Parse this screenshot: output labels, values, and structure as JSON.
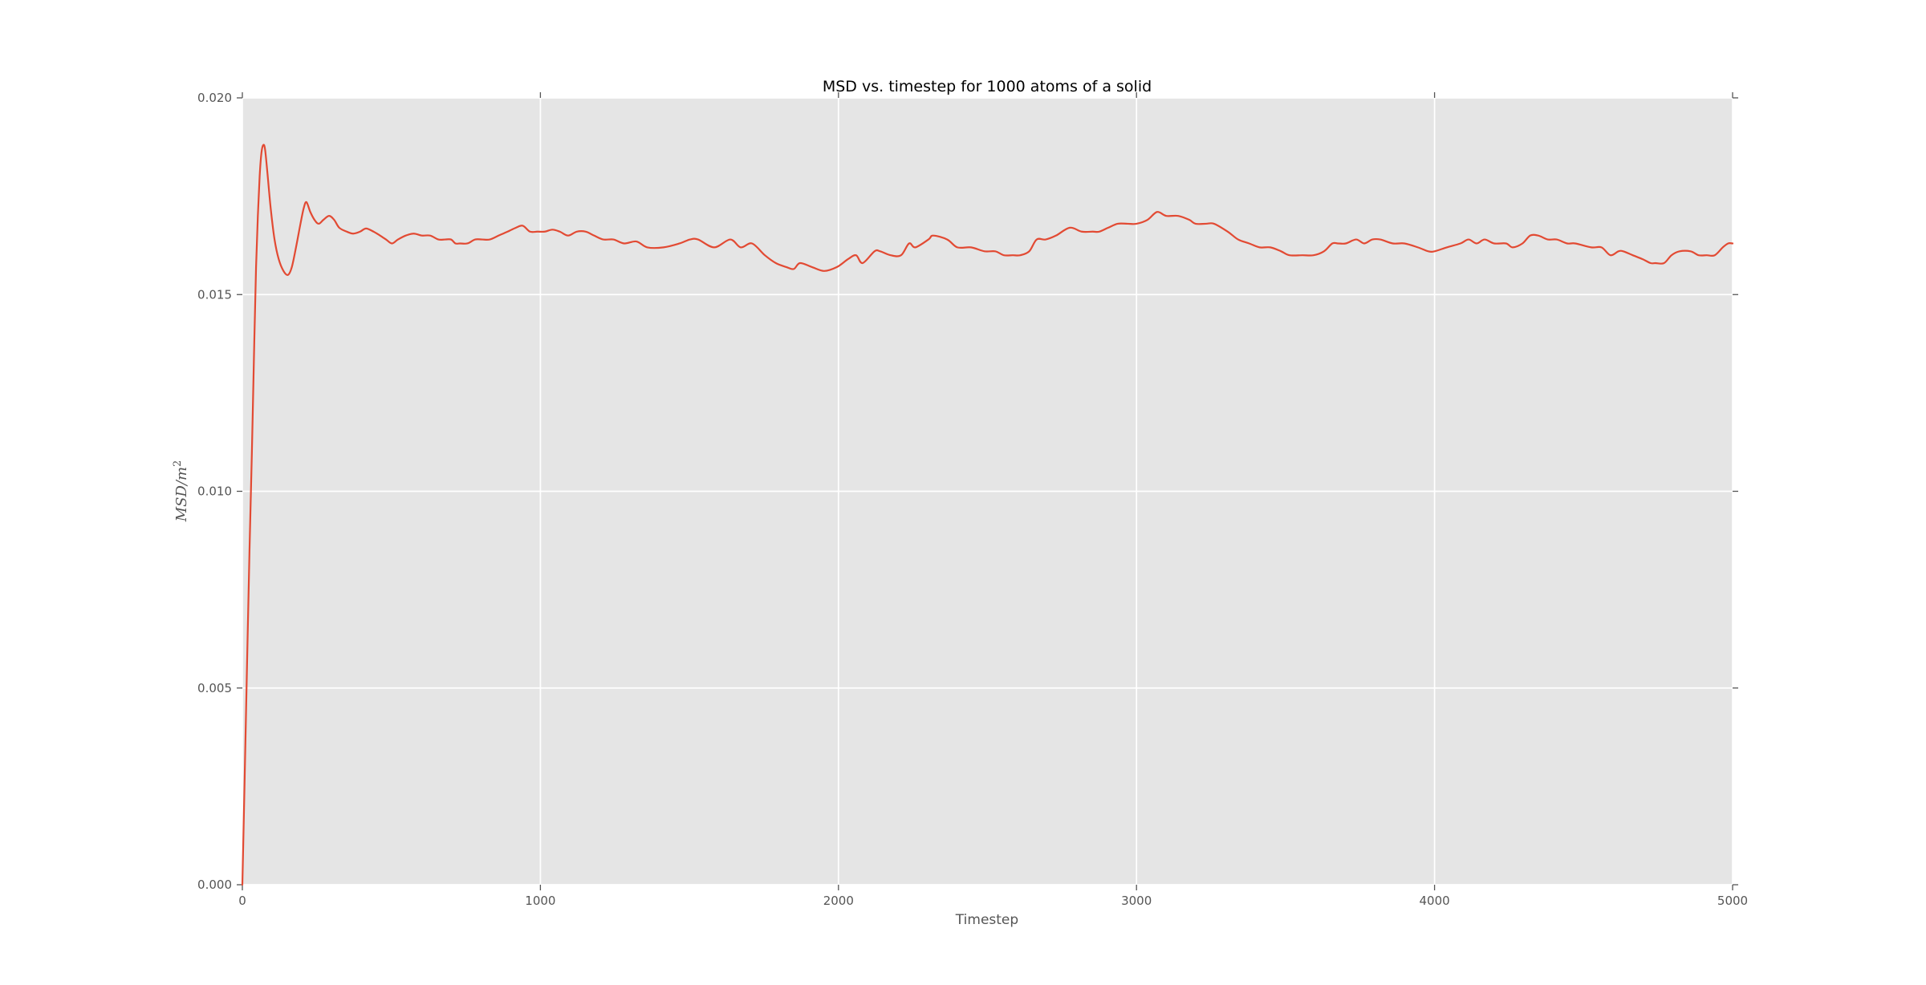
{
  "page": {
    "background": "#ffffff"
  },
  "chart_data": {
    "type": "line",
    "title": "MSD vs. timestep for 1000 atoms of a solid",
    "xlabel": "Timestep",
    "ylabel": "MSD/m²",
    "ylabel_base": "MSD/m",
    "ylabel_sup": "2",
    "xlim": [
      0,
      5000
    ],
    "ylim": [
      0.0,
      0.02
    ],
    "xticks": {
      "values": [
        0,
        1000,
        2000,
        3000,
        4000,
        5000
      ],
      "labels": [
        "0",
        "1000",
        "2000",
        "3000",
        "4000",
        "5000"
      ]
    },
    "yticks": {
      "values": [
        0.0,
        0.005,
        0.01,
        0.015,
        0.02
      ],
      "labels": [
        "0.000",
        "0.005",
        "0.010",
        "0.015",
        "0.020"
      ]
    },
    "grid": true,
    "legend": "none",
    "style": {
      "plot_bg": "#e5e5e5",
      "grid_color": "#ffffff",
      "line_color": "#e24a33",
      "tick_color": "#555555",
      "label_color": "#555555",
      "title_color": "#000000"
    },
    "series": [
      {
        "name": "MSD",
        "points": [
          [
            0,
            0
          ],
          [
            8,
            0.0028
          ],
          [
            16,
            0.0057
          ],
          [
            24,
            0.0085
          ],
          [
            32,
            0.011
          ],
          [
            40,
            0.0138
          ],
          [
            46,
            0.0157
          ],
          [
            52,
            0.017
          ],
          [
            58,
            0.018
          ],
          [
            64,
            0.0186
          ],
          [
            70,
            0.0188
          ],
          [
            76,
            0.0187
          ],
          [
            84,
            0.0181
          ],
          [
            95,
            0.0172
          ],
          [
            108,
            0.0164
          ],
          [
            122,
            0.0159
          ],
          [
            138,
            0.0156
          ],
          [
            153,
            0.0155
          ],
          [
            166,
            0.0157
          ],
          [
            180,
            0.0162
          ],
          [
            195,
            0.0168
          ],
          [
            206,
            0.0172
          ],
          [
            215,
            0.01735
          ],
          [
            228,
            0.0171
          ],
          [
            242,
            0.0169
          ],
          [
            256,
            0.0168
          ],
          [
            272,
            0.0169
          ],
          [
            291,
            0.017
          ],
          [
            308,
            0.0169
          ],
          [
            325,
            0.0167
          ],
          [
            350,
            0.0166
          ],
          [
            372,
            0.01655
          ],
          [
            395,
            0.0166
          ],
          [
            415,
            0.01668
          ],
          [
            440,
            0.0166
          ],
          [
            462,
            0.0165
          ],
          [
            482,
            0.0164
          ],
          [
            502,
            0.0163
          ],
          [
            522,
            0.0164
          ],
          [
            548,
            0.0165
          ],
          [
            575,
            0.01655
          ],
          [
            602,
            0.0165
          ],
          [
            630,
            0.0165
          ],
          [
            658,
            0.0164
          ],
          [
            680,
            0.0164
          ],
          [
            700,
            0.0164
          ],
          [
            715,
            0.0163
          ],
          [
            730,
            0.0163
          ],
          [
            755,
            0.0163
          ],
          [
            781,
            0.0164
          ],
          [
            805,
            0.0164
          ],
          [
            830,
            0.0164
          ],
          [
            860,
            0.0165
          ],
          [
            890,
            0.0166
          ],
          [
            918,
            0.0167
          ],
          [
            941,
            0.01675
          ],
          [
            965,
            0.0166
          ],
          [
            990,
            0.0166
          ],
          [
            1015,
            0.0166
          ],
          [
            1040,
            0.01665
          ],
          [
            1065,
            0.0166
          ],
          [
            1093,
            0.0165
          ],
          [
            1122,
            0.0166
          ],
          [
            1152,
            0.0166
          ],
          [
            1180,
            0.0165
          ],
          [
            1211,
            0.0164
          ],
          [
            1245,
            0.0164
          ],
          [
            1281,
            0.0163
          ],
          [
            1322,
            0.01635
          ],
          [
            1359,
            0.0162
          ],
          [
            1413,
            0.0162
          ],
          [
            1467,
            0.0163
          ],
          [
            1502,
            0.0164
          ],
          [
            1529,
            0.0164
          ],
          [
            1583,
            0.0162
          ],
          [
            1637,
            0.0164
          ],
          [
            1672,
            0.0162
          ],
          [
            1710,
            0.0163
          ],
          [
            1753,
            0.016
          ],
          [
            1790,
            0.0158
          ],
          [
            1825,
            0.0157
          ],
          [
            1850,
            0.01565
          ],
          [
            1871,
            0.0158
          ],
          [
            1911,
            0.0157
          ],
          [
            1952,
            0.0156
          ],
          [
            1995,
            0.0157
          ],
          [
            2032,
            0.0159
          ],
          [
            2059,
            0.016
          ],
          [
            2081,
            0.0158
          ],
          [
            2121,
            0.0161
          ],
          [
            2140,
            0.0161
          ],
          [
            2175,
            0.016
          ],
          [
            2210,
            0.016
          ],
          [
            2237,
            0.0163
          ],
          [
            2258,
            0.0162
          ],
          [
            2302,
            0.0164
          ],
          [
            2318,
            0.0165
          ],
          [
            2365,
            0.0164
          ],
          [
            2399,
            0.0162
          ],
          [
            2445,
            0.0162
          ],
          [
            2490,
            0.0161
          ],
          [
            2526,
            0.0161
          ],
          [
            2555,
            0.016
          ],
          [
            2585,
            0.016
          ],
          [
            2610,
            0.016
          ],
          [
            2640,
            0.0161
          ],
          [
            2665,
            0.0164
          ],
          [
            2695,
            0.0164
          ],
          [
            2730,
            0.0165
          ],
          [
            2776,
            0.0167
          ],
          [
            2816,
            0.0166
          ],
          [
            2853,
            0.0166
          ],
          [
            2875,
            0.0166
          ],
          [
            2905,
            0.0167
          ],
          [
            2937,
            0.0168
          ],
          [
            2970,
            0.0168
          ],
          [
            3000,
            0.0168
          ],
          [
            3037,
            0.0169
          ],
          [
            3069,
            0.0171
          ],
          [
            3100,
            0.017
          ],
          [
            3140,
            0.017
          ],
          [
            3177,
            0.0169
          ],
          [
            3198,
            0.0168
          ],
          [
            3233,
            0.0168
          ],
          [
            3260,
            0.0168
          ],
          [
            3306,
            0.0166
          ],
          [
            3341,
            0.0164
          ],
          [
            3378,
            0.0163
          ],
          [
            3413,
            0.0162
          ],
          [
            3449,
            0.0162
          ],
          [
            3485,
            0.0161
          ],
          [
            3513,
            0.016
          ],
          [
            3557,
            0.016
          ],
          [
            3594,
            0.016
          ],
          [
            3629,
            0.0161
          ],
          [
            3657,
            0.0163
          ],
          [
            3676,
            0.0163
          ],
          [
            3702,
            0.0163
          ],
          [
            3737,
            0.0164
          ],
          [
            3764,
            0.0163
          ],
          [
            3791,
            0.0164
          ],
          [
            3818,
            0.0164
          ],
          [
            3860,
            0.0163
          ],
          [
            3899,
            0.0163
          ],
          [
            3944,
            0.0162
          ],
          [
            3979,
            0.0161
          ],
          [
            4000,
            0.0161
          ],
          [
            4041,
            0.0162
          ],
          [
            4087,
            0.0163
          ],
          [
            4114,
            0.0164
          ],
          [
            4141,
            0.0163
          ],
          [
            4168,
            0.0164
          ],
          [
            4200,
            0.0163
          ],
          [
            4240,
            0.0163
          ],
          [
            4262,
            0.0162
          ],
          [
            4295,
            0.0163
          ],
          [
            4321,
            0.0165
          ],
          [
            4348,
            0.0165
          ],
          [
            4380,
            0.0164
          ],
          [
            4410,
            0.0164
          ],
          [
            4445,
            0.0163
          ],
          [
            4472,
            0.0163
          ],
          [
            4526,
            0.0162
          ],
          [
            4560,
            0.0162
          ],
          [
            4590,
            0.016
          ],
          [
            4617,
            0.0161
          ],
          [
            4633,
            0.0161
          ],
          [
            4665,
            0.016
          ],
          [
            4698,
            0.0159
          ],
          [
            4725,
            0.0158
          ],
          [
            4741,
            0.0158
          ],
          [
            4770,
            0.0158
          ],
          [
            4795,
            0.016
          ],
          [
            4822,
            0.0161
          ],
          [
            4859,
            0.0161
          ],
          [
            4886,
            0.016
          ],
          [
            4913,
            0.016
          ],
          [
            4940,
            0.016
          ],
          [
            4967,
            0.0162
          ],
          [
            4985,
            0.0163
          ],
          [
            5000,
            0.0163
          ]
        ]
      }
    ]
  }
}
